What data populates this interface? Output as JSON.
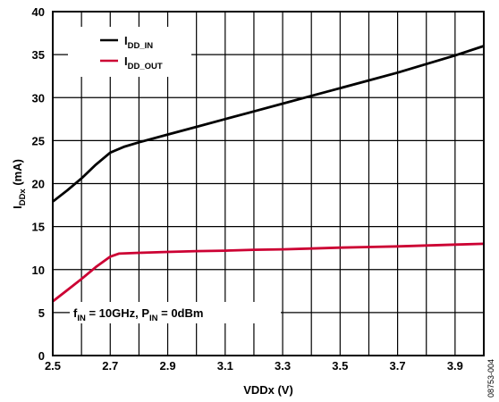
{
  "chart_data": {
    "type": "line",
    "xlabel": "VDDx (V)",
    "ylabel_main": "I",
    "ylabel_sub": "DDx",
    "ylabel_unit": " (mA)",
    "xlim": [
      2.5,
      4.0
    ],
    "ylim": [
      0,
      40
    ],
    "x_ticks": [
      "2.5",
      "2.7",
      "2.9",
      "3.1",
      "3.3",
      "3.5",
      "3.7",
      "3.9"
    ],
    "y_ticks": [
      "0",
      "5",
      "10",
      "15",
      "20",
      "25",
      "30",
      "35",
      "40"
    ],
    "grid": true,
    "legend_position": "top-left",
    "series": [
      {
        "name_main": "I",
        "name_sub": "DD_IN",
        "color": "#000000",
        "x": [
          2.5,
          2.55,
          2.6,
          2.65,
          2.7,
          2.75,
          2.8,
          2.9,
          3.0,
          3.1,
          3.2,
          3.3,
          3.4,
          3.5,
          3.6,
          3.7,
          3.8,
          3.9,
          4.0
        ],
        "y": [
          17.9,
          19.2,
          20.6,
          22.2,
          23.6,
          24.3,
          24.8,
          25.7,
          26.6,
          27.5,
          28.4,
          29.3,
          30.2,
          31.1,
          32.0,
          32.9,
          33.9,
          34.9,
          36.0
        ]
      },
      {
        "name_main": "I",
        "name_sub": "DD_OUT",
        "color": "#cc0033",
        "x": [
          2.5,
          2.55,
          2.6,
          2.65,
          2.7,
          2.73,
          2.8,
          2.9,
          3.0,
          3.1,
          3.2,
          3.3,
          3.4,
          3.5,
          3.6,
          3.7,
          3.8,
          3.9,
          4.0
        ],
        "y": [
          6.3,
          7.6,
          8.9,
          10.3,
          11.5,
          11.85,
          11.95,
          12.05,
          12.15,
          12.2,
          12.3,
          12.35,
          12.45,
          12.55,
          12.62,
          12.7,
          12.8,
          12.9,
          13.0
        ]
      }
    ],
    "annotation": {
      "f_main": "f",
      "f_sub": "IN",
      "f_val": " = 10GHz, P",
      "p_sub": "IN",
      "p_val": " = 0dBm"
    },
    "figure_id": "08753-004"
  }
}
